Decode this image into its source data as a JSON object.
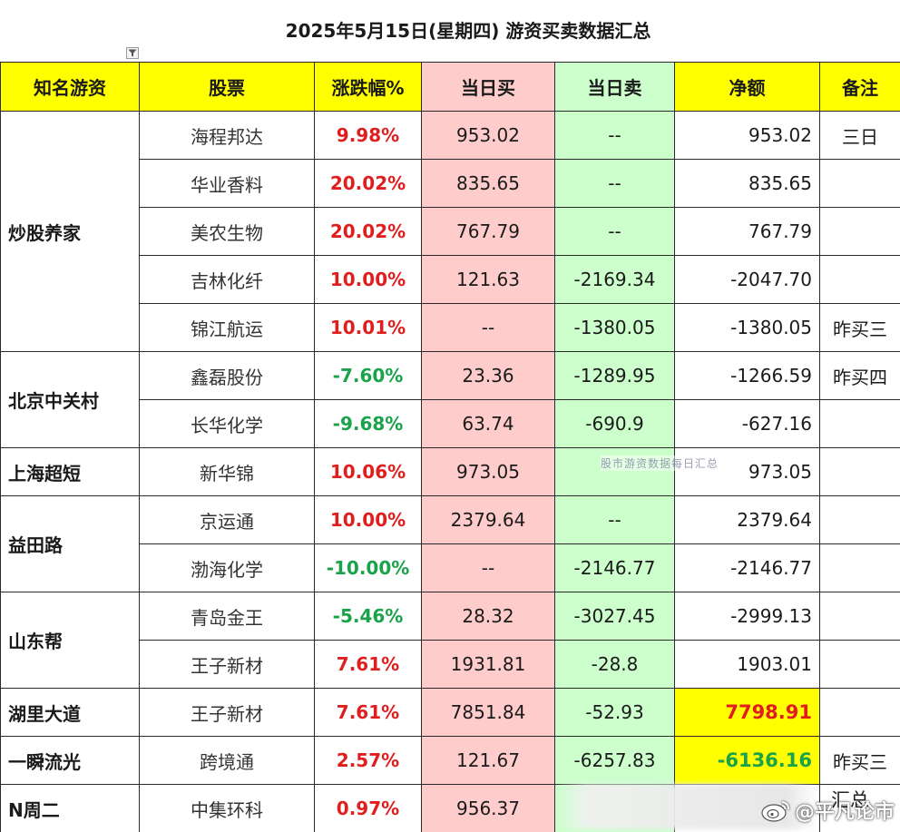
{
  "title": "2025年5月15日(星期四) 游资买卖数据汇总",
  "headers": {
    "trader": "知名游资",
    "stock": "股票",
    "change": "涨跌幅%",
    "buy": "当日买",
    "sell": "当日卖",
    "net": "净额",
    "note": "备注"
  },
  "groups": [
    {
      "trader": "炒股养家",
      "rows": [
        {
          "stock": "海程邦达",
          "change": "9.98%",
          "dir": "up",
          "buy": "953.02",
          "sell": "--",
          "net": "953.02",
          "note": "三日"
        },
        {
          "stock": "华业香料",
          "change": "20.02%",
          "dir": "up",
          "buy": "835.65",
          "sell": "--",
          "net": "835.65",
          "note": ""
        },
        {
          "stock": "美农生物",
          "change": "20.02%",
          "dir": "up",
          "buy": "767.79",
          "sell": "--",
          "net": "767.79",
          "note": ""
        },
        {
          "stock": "吉林化纤",
          "change": "10.00%",
          "dir": "up",
          "buy": "121.63",
          "sell": "-2169.34",
          "net": "-2047.70",
          "note": ""
        },
        {
          "stock": "锦江航运",
          "change": "10.01%",
          "dir": "up",
          "buy": "--",
          "sell": "-1380.05",
          "net": "-1380.05",
          "note": "昨买三"
        }
      ]
    },
    {
      "trader": "北京中关村",
      "rows": [
        {
          "stock": "鑫磊股份",
          "change": "-7.60%",
          "dir": "down",
          "buy": "23.36",
          "sell": "-1289.95",
          "net": "-1266.59",
          "note": "昨买四"
        },
        {
          "stock": "长华化学",
          "change": "-9.68%",
          "dir": "down",
          "buy": "63.74",
          "sell": "-690.9",
          "net": "-627.16",
          "note": ""
        }
      ]
    },
    {
      "trader": "上海超短",
      "rows": [
        {
          "stock": "新华锦",
          "change": "10.06%",
          "dir": "up",
          "buy": "973.05",
          "sell": "",
          "net": "973.05",
          "note": ""
        }
      ]
    },
    {
      "trader": "益田路",
      "rows": [
        {
          "stock": "京运通",
          "change": "10.00%",
          "dir": "up",
          "buy": "2379.64",
          "sell": "--",
          "net": "2379.64",
          "note": ""
        },
        {
          "stock": "渤海化学",
          "change": "-10.00%",
          "dir": "down",
          "buy": "--",
          "sell": "-2146.77",
          "net": "-2146.77",
          "note": ""
        }
      ]
    },
    {
      "trader": "山东帮",
      "rows": [
        {
          "stock": "青岛金王",
          "change": "-5.46%",
          "dir": "down",
          "buy": "28.32",
          "sell": "-3027.45",
          "net": "-2999.13",
          "note": ""
        },
        {
          "stock": "王子新材",
          "change": "7.61%",
          "dir": "up",
          "buy": "1931.81",
          "sell": "-28.8",
          "net": "1903.01",
          "note": ""
        }
      ]
    },
    {
      "trader": "湖里大道",
      "rows": [
        {
          "stock": "王子新材",
          "change": "7.61%",
          "dir": "up",
          "buy": "7851.84",
          "sell": "-52.93",
          "net": "7798.91",
          "note": "",
          "highlight": "up"
        }
      ]
    },
    {
      "trader": "一瞬流光",
      "rows": [
        {
          "stock": "跨境通",
          "change": "2.57%",
          "dir": "up",
          "buy": "121.67",
          "sell": "-6257.83",
          "net": "-6136.16",
          "note": "昨买三",
          "highlight": "down"
        }
      ]
    },
    {
      "trader": "N周二",
      "rows": [
        {
          "stock": "中集环科",
          "change": "0.97%",
          "dir": "up",
          "buy": "956.37",
          "sell": "",
          "net": "",
          "note": ""
        }
      ]
    }
  ],
  "watermarks": {
    "center": "股市游资数据每日汇总",
    "corner": "@平凡论市",
    "corner_icon": "weibo-icon",
    "bottom_right_partial": "汇总"
  },
  "colors": {
    "header_bg": "#ffff00",
    "buy_bg": "#ffcccc",
    "sell_bg": "#ccffcc",
    "up": "#e01e1e",
    "down": "#1aa34a"
  }
}
